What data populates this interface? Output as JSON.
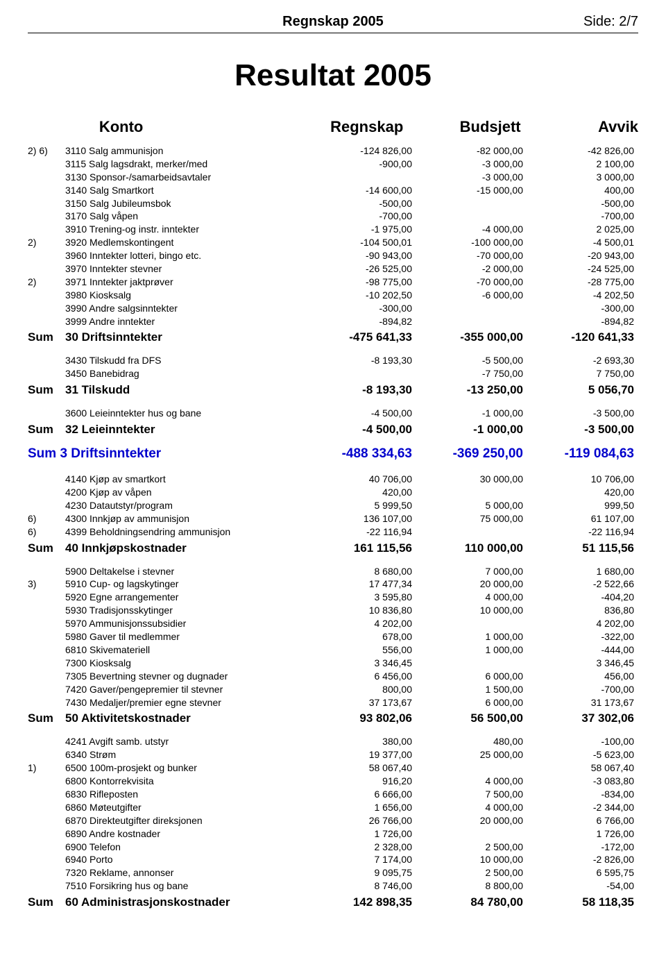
{
  "header": {
    "title": "Regnskap 2005",
    "page": "Side: 2/7"
  },
  "big_title": "Resultat 2005",
  "columns": {
    "konto": "Konto",
    "regnskap": "Regnskap",
    "budsjett": "Budsjett",
    "avvik": "Avvik"
  },
  "sum_word": "Sum",
  "sections": [
    {
      "rows": [
        {
          "note": "2) 6)",
          "acct": "3110 Salg ammunisjon",
          "r": "-124 826,00",
          "b": "-82 000,00",
          "a": "-42 826,00"
        },
        {
          "note": "",
          "acct": "3115 Salg lagsdrakt, merker/med",
          "r": "-900,00",
          "b": "-3 000,00",
          "a": "2 100,00"
        },
        {
          "note": "",
          "acct": "3130 Sponsor-/samarbeidsavtaler",
          "r": "",
          "b": "-3 000,00",
          "a": "3 000,00"
        },
        {
          "note": "",
          "acct": "3140 Salg Smartkort",
          "r": "-14 600,00",
          "b": "-15 000,00",
          "a": "400,00"
        },
        {
          "note": "",
          "acct": "3150 Salg Jubileumsbok",
          "r": "-500,00",
          "b": "",
          "a": "-500,00"
        },
        {
          "note": "",
          "acct": "3170 Salg våpen",
          "r": "-700,00",
          "b": "",
          "a": "-700,00"
        },
        {
          "note": "",
          "acct": "3910 Trening-og instr. inntekter",
          "r": "-1 975,00",
          "b": "-4 000,00",
          "a": "2 025,00"
        },
        {
          "note": "2)",
          "acct": "3920 Medlemskontingent",
          "r": "-104 500,01",
          "b": "-100 000,00",
          "a": "-4 500,01"
        },
        {
          "note": "",
          "acct": "3960 Inntekter lotteri, bingo etc.",
          "r": "-90 943,00",
          "b": "-70 000,00",
          "a": "-20 943,00"
        },
        {
          "note": "",
          "acct": "3970 Inntekter stevner",
          "r": "-26 525,00",
          "b": "-2 000,00",
          "a": "-24 525,00"
        },
        {
          "note": "2)",
          "acct": "3971 Inntekter jaktprøver",
          "r": "-98 775,00",
          "b": "-70 000,00",
          "a": "-28 775,00"
        },
        {
          "note": "",
          "acct": "3980 Kiosksalg",
          "r": "-10 202,50",
          "b": "-6 000,00",
          "a": "-4 202,50"
        },
        {
          "note": "",
          "acct": "3990 Andre salgsinntekter",
          "r": "-300,00",
          "b": "",
          "a": "-300,00"
        },
        {
          "note": "",
          "acct": "3999 Andre inntekter",
          "r": "-894,82",
          "b": "",
          "a": "-894,82"
        }
      ],
      "sum": {
        "label": "30 Driftsinntekter",
        "r": "-475 641,33",
        "b": "-355 000,00",
        "a": "-120 641,33"
      }
    },
    {
      "rows": [
        {
          "note": "",
          "acct": "3430 Tilskudd fra DFS",
          "r": "-8 193,30",
          "b": "-5 500,00",
          "a": "-2 693,30"
        },
        {
          "note": "",
          "acct": "3450 Banebidrag",
          "r": "",
          "b": "-7 750,00",
          "a": "7 750,00"
        }
      ],
      "sum": {
        "label": "31 Tilskudd",
        "r": "-8 193,30",
        "b": "-13 250,00",
        "a": "5 056,70"
      }
    },
    {
      "rows": [
        {
          "note": "",
          "acct": "3600 Leieinntekter hus og bane",
          "r": "-4 500,00",
          "b": "-1 000,00",
          "a": "-3 500,00"
        }
      ],
      "sum": {
        "label": "32 Leieinntekter",
        "r": "-4 500,00",
        "b": "-1 000,00",
        "a": "-3 500,00"
      }
    }
  ],
  "group_sum_1": {
    "label": "Sum 3 Driftsinntekter",
    "r": "-488 334,63",
    "b": "-369 250,00",
    "a": "-119 084,63"
  },
  "sections2": [
    {
      "rows": [
        {
          "note": "",
          "acct": "4140 Kjøp av smartkort",
          "r": "40 706,00",
          "b": "30 000,00",
          "a": "10 706,00"
        },
        {
          "note": "",
          "acct": "4200 Kjøp av våpen",
          "r": "420,00",
          "b": "",
          "a": "420,00"
        },
        {
          "note": "",
          "acct": "4230 Datautstyr/program",
          "r": "5 999,50",
          "b": "5 000,00",
          "a": "999,50"
        },
        {
          "note": "6)",
          "acct": "4300 Innkjøp av ammunisjon",
          "r": "136 107,00",
          "b": "75 000,00",
          "a": "61 107,00"
        },
        {
          "note": "6)",
          "acct": "4399 Beholdningsendring ammunisjon",
          "r": "-22 116,94",
          "b": "",
          "a": "-22 116,94"
        }
      ],
      "sum": {
        "label": "40 Innkjøpskostnader",
        "r": "161 115,56",
        "b": "110 000,00",
        "a": "51 115,56"
      }
    },
    {
      "rows": [
        {
          "note": "",
          "acct": "5900 Deltakelse i stevner",
          "r": "8 680,00",
          "b": "7 000,00",
          "a": "1 680,00"
        },
        {
          "note": "3)",
          "acct": "5910 Cup- og lagskytinger",
          "r": "17 477,34",
          "b": "20 000,00",
          "a": "-2 522,66"
        },
        {
          "note": "",
          "acct": "5920 Egne arrangementer",
          "r": "3 595,80",
          "b": "4 000,00",
          "a": "-404,20"
        },
        {
          "note": "",
          "acct": "5930 Tradisjonsskytinger",
          "r": "10 836,80",
          "b": "10 000,00",
          "a": "836,80"
        },
        {
          "note": "",
          "acct": "5970 Ammunisjonssubsidier",
          "r": "4 202,00",
          "b": "",
          "a": "4 202,00"
        },
        {
          "note": "",
          "acct": "5980 Gaver til medlemmer",
          "r": "678,00",
          "b": "1 000,00",
          "a": "-322,00"
        },
        {
          "note": "",
          "acct": "6810 Skivemateriell",
          "r": "556,00",
          "b": "1 000,00",
          "a": "-444,00"
        },
        {
          "note": "",
          "acct": "7300 Kiosksalg",
          "r": "3 346,45",
          "b": "",
          "a": "3 346,45"
        },
        {
          "note": "",
          "acct": "7305 Bevertning stevner og dugnader",
          "r": "6 456,00",
          "b": "6 000,00",
          "a": "456,00"
        },
        {
          "note": "",
          "acct": "7420 Gaver/pengepremier til stevner",
          "r": "800,00",
          "b": "1 500,00",
          "a": "-700,00"
        },
        {
          "note": "",
          "acct": "7430 Medaljer/premier egne stevner",
          "r": "37 173,67",
          "b": "6 000,00",
          "a": "31 173,67"
        }
      ],
      "sum": {
        "label": "50 Aktivitetskostnader",
        "r": "93 802,06",
        "b": "56 500,00",
        "a": "37 302,06"
      }
    },
    {
      "rows": [
        {
          "note": "",
          "acct": "4241 Avgift samb. utstyr",
          "r": "380,00",
          "b": "480,00",
          "a": "-100,00"
        },
        {
          "note": "",
          "acct": "6340 Strøm",
          "r": "19 377,00",
          "b": "25 000,00",
          "a": "-5 623,00"
        },
        {
          "note": "1)",
          "acct": "6500 100m-prosjekt og bunker",
          "r": "58 067,40",
          "b": "",
          "a": "58 067,40"
        },
        {
          "note": "",
          "acct": "6800 Kontorrekvisita",
          "r": "916,20",
          "b": "4 000,00",
          "a": "-3 083,80"
        },
        {
          "note": "",
          "acct": "6830 Rifleposten",
          "r": "6 666,00",
          "b": "7 500,00",
          "a": "-834,00"
        },
        {
          "note": "",
          "acct": "6860 Møteutgifter",
          "r": "1 656,00",
          "b": "4 000,00",
          "a": "-2 344,00"
        },
        {
          "note": "",
          "acct": "6870 Direkteutgifter direksjonen",
          "r": "26 766,00",
          "b": "20 000,00",
          "a": "6 766,00"
        },
        {
          "note": "",
          "acct": "6890 Andre kostnader",
          "r": "1 726,00",
          "b": "",
          "a": "1 726,00"
        },
        {
          "note": "",
          "acct": "6900 Telefon",
          "r": "2 328,00",
          "b": "2 500,00",
          "a": "-172,00"
        },
        {
          "note": "",
          "acct": "6940 Porto",
          "r": "7 174,00",
          "b": "10 000,00",
          "a": "-2 826,00"
        },
        {
          "note": "",
          "acct": "7320 Reklame, annonser",
          "r": "9 095,75",
          "b": "2 500,00",
          "a": "6 595,75"
        },
        {
          "note": "",
          "acct": "7510 Forsikring hus og bane",
          "r": "8 746,00",
          "b": "8 800,00",
          "a": "-54,00"
        }
      ],
      "sum": {
        "label": "60 Administrasjonskostnader",
        "r": "142 898,35",
        "b": "84 780,00",
        "a": "58 118,35"
      }
    }
  ]
}
